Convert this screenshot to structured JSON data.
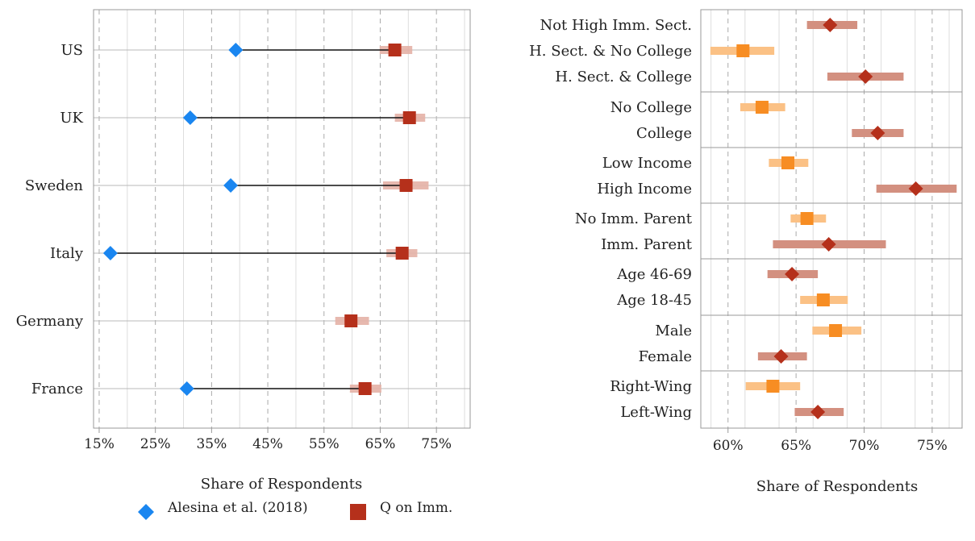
{
  "chart_data": [
    {
      "type": "dot-range",
      "title": "",
      "xlabel": "Share of Respondents",
      "ylabel": "",
      "xlim": [
        14,
        81
      ],
      "x_ticks": [
        15,
        25,
        35,
        45,
        55,
        65,
        75
      ],
      "x_tick_labels": [
        "15%",
        "25%",
        "35%",
        "45%",
        "55%",
        "65%",
        "75%"
      ],
      "grid": "vertical dashed",
      "categories": [
        "US",
        "UK",
        "Sweden",
        "Italy",
        "Germany",
        "France"
      ],
      "series": [
        {
          "name": "Alesina et al. (2018)",
          "marker": "diamond",
          "color": "#1a86f0",
          "values": [
            39.3,
            31.2,
            38.4,
            17.0,
            null,
            30.6
          ]
        },
        {
          "name": "Q on Imm.",
          "marker": "square",
          "color": "#b5301b",
          "values": [
            67.6,
            70.2,
            69.6,
            68.9,
            59.8,
            62.3
          ],
          "ci_low": [
            64.9,
            67.6,
            65.5,
            66.1,
            57.0,
            59.6
          ],
          "ci_high": [
            70.7,
            73.0,
            73.6,
            71.6,
            63.0,
            65.2
          ]
        }
      ]
    },
    {
      "type": "dot-range",
      "title": "",
      "xlabel": "Share of Respondents",
      "ylabel": "",
      "xlim": [
        58.0,
        77.2
      ],
      "x_ticks": [
        60,
        65,
        70,
        75
      ],
      "x_tick_labels": [
        "60%",
        "65%",
        "70%",
        "75%"
      ],
      "grid": "vertical dashed",
      "groups": [
        {
          "items": [
            {
              "label": "Not High Imm. Sect.",
              "value": 67.5,
              "low": 65.8,
              "high": 69.5,
              "marker": "diamond",
              "color": "#b5301b",
              "band": "#d39080"
            },
            {
              "label": "H. Sect. & No College",
              "value": 61.1,
              "low": 58.7,
              "high": 63.4,
              "marker": "square",
              "color": "#f78d23",
              "band": "#fbc185"
            },
            {
              "label": "H. Sect. & College",
              "value": 70.1,
              "low": 67.3,
              "high": 72.9,
              "marker": "diamond",
              "color": "#b5301b",
              "band": "#d39080"
            }
          ]
        },
        {
          "items": [
            {
              "label": "No College",
              "value": 62.5,
              "low": 60.9,
              "high": 64.2,
              "marker": "square",
              "color": "#f78d23",
              "band": "#fbc185"
            },
            {
              "label": "College",
              "value": 71.0,
              "low": 69.1,
              "high": 72.9,
              "marker": "diamond",
              "color": "#b5301b",
              "band": "#d39080"
            }
          ]
        },
        {
          "items": [
            {
              "label": "Low Income",
              "value": 64.4,
              "low": 63.0,
              "high": 65.9,
              "marker": "square",
              "color": "#f78d23",
              "band": "#fbc185"
            },
            {
              "label": "High Income",
              "value": 73.8,
              "low": 70.9,
              "high": 76.8,
              "marker": "diamond",
              "color": "#b5301b",
              "band": "#d39080"
            }
          ]
        },
        {
          "items": [
            {
              "label": "No Imm. Parent",
              "value": 65.8,
              "low": 64.6,
              "high": 67.2,
              "marker": "square",
              "color": "#f78d23",
              "band": "#fbc185"
            },
            {
              "label": "Imm. Parent",
              "value": 67.4,
              "low": 63.3,
              "high": 71.6,
              "marker": "diamond",
              "color": "#b5301b",
              "band": "#d39080"
            }
          ]
        },
        {
          "items": [
            {
              "label": "Age 46-69",
              "value": 64.7,
              "low": 62.9,
              "high": 66.6,
              "marker": "diamond",
              "color": "#b5301b",
              "band": "#d39080"
            },
            {
              "label": "Age 18-45",
              "value": 67.0,
              "low": 65.3,
              "high": 68.8,
              "marker": "square",
              "color": "#f78d23",
              "band": "#fbc185"
            }
          ]
        },
        {
          "items": [
            {
              "label": "Male",
              "value": 67.9,
              "low": 66.2,
              "high": 69.8,
              "marker": "square",
              "color": "#f78d23",
              "band": "#fbc185"
            },
            {
              "label": "Female",
              "value": 63.9,
              "low": 62.2,
              "high": 65.8,
              "marker": "diamond",
              "color": "#b5301b",
              "band": "#d39080"
            }
          ]
        },
        {
          "items": [
            {
              "label": "Right-Wing",
              "value": 63.3,
              "low": 61.3,
              "high": 65.3,
              "marker": "square",
              "color": "#f78d23",
              "band": "#fbc185"
            },
            {
              "label": "Left-Wing",
              "value": 66.6,
              "low": 64.9,
              "high": 68.5,
              "marker": "diamond",
              "color": "#b5301b",
              "band": "#d39080"
            }
          ]
        }
      ]
    }
  ],
  "legend": {
    "placement": "bottom-left",
    "items": [
      {
        "label": "Alesina et al. (2018)",
        "marker": "diamond",
        "color": "#1a86f0"
      },
      {
        "label": "Q on Imm.",
        "marker": "square",
        "color": "#b5301b"
      }
    ]
  }
}
